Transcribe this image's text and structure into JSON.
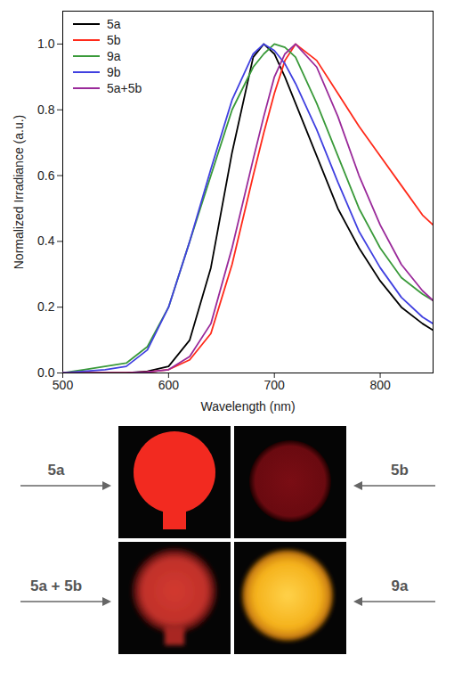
{
  "chart_data": {
    "type": "line",
    "x_label": "Wavelength (nm)",
    "y_label": "Normalized Irradiance (a.u.)",
    "x": [
      500,
      520,
      540,
      560,
      580,
      600,
      620,
      640,
      660,
      680,
      690,
      700,
      710,
      720,
      740,
      760,
      780,
      800,
      820,
      840,
      850
    ],
    "series": [
      {
        "name": "5a",
        "color": "#000000",
        "values": [
          0,
          0,
          0,
          0,
          0.005,
          0.02,
          0.1,
          0.32,
          0.67,
          0.96,
          1.0,
          0.97,
          0.9,
          0.82,
          0.66,
          0.5,
          0.38,
          0.28,
          0.2,
          0.15,
          0.13
        ]
      },
      {
        "name": "5b",
        "color": "#ff2a1a",
        "values": [
          0,
          0,
          0,
          0,
          0.003,
          0.01,
          0.04,
          0.12,
          0.33,
          0.6,
          0.73,
          0.85,
          0.95,
          1.0,
          0.95,
          0.85,
          0.75,
          0.66,
          0.57,
          0.48,
          0.45
        ]
      },
      {
        "name": "9a",
        "color": "#3a9a3a",
        "values": [
          0,
          0.01,
          0.02,
          0.03,
          0.08,
          0.2,
          0.4,
          0.6,
          0.8,
          0.93,
          0.97,
          1.0,
          0.99,
          0.96,
          0.82,
          0.66,
          0.5,
          0.38,
          0.29,
          0.24,
          0.22
        ]
      },
      {
        "name": "9b",
        "color": "#4040e0",
        "values": [
          0,
          0.005,
          0.01,
          0.02,
          0.07,
          0.2,
          0.4,
          0.62,
          0.83,
          0.97,
          1.0,
          0.98,
          0.94,
          0.88,
          0.74,
          0.58,
          0.43,
          0.32,
          0.23,
          0.17,
          0.15
        ]
      },
      {
        "name": "5a+5b",
        "color": "#9a2a9a",
        "values": [
          0,
          0,
          0,
          0,
          0.003,
          0.01,
          0.05,
          0.15,
          0.38,
          0.65,
          0.78,
          0.9,
          0.97,
          1.0,
          0.93,
          0.78,
          0.6,
          0.45,
          0.33,
          0.25,
          0.22
        ]
      }
    ],
    "xlim": [
      500,
      850
    ],
    "xticks": [
      500,
      600,
      700,
      800
    ],
    "ylim": [
      0,
      1.1
    ],
    "yticks": [
      {
        "value": 0,
        "label": "0.0"
      },
      0.2,
      0.4,
      0.6,
      0.8,
      {
        "value": 1,
        "label": "1.0"
      }
    ],
    "legend": "upper left"
  },
  "photos": {
    "labels": [
      "5a",
      "5b",
      "5a + 5b",
      "9a"
    ]
  }
}
